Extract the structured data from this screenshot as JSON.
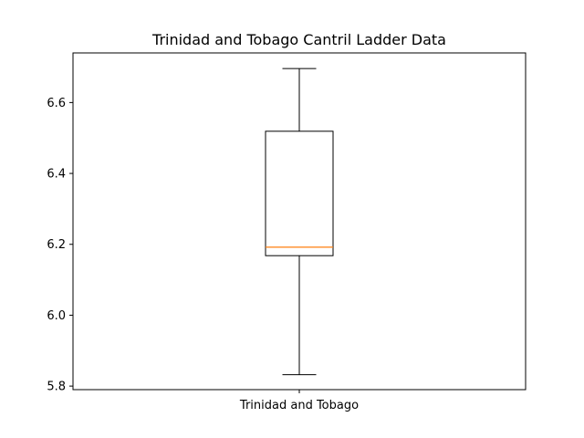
{
  "chart_data": {
    "type": "box",
    "title": "Trinidad and Tobago Cantril Ladder Data",
    "xlabel": "",
    "ylabel": "",
    "categories": [
      "Trinidad and Tobago"
    ],
    "boxes": [
      {
        "name": "Trinidad and Tobago",
        "whisker_low": 5.832,
        "q1": 6.168,
        "median": 6.192,
        "q3": 6.519,
        "whisker_high": 6.696
      }
    ],
    "ylim": [
      5.79,
      6.74
    ],
    "yticks": [
      5.8,
      6.0,
      6.2,
      6.4,
      6.6
    ],
    "ytick_labels": [
      "5.8",
      "6.0",
      "6.2",
      "6.4",
      "6.6"
    ],
    "grid": false,
    "colors": {
      "box": "#000000",
      "median": "#ff7f0e"
    }
  }
}
